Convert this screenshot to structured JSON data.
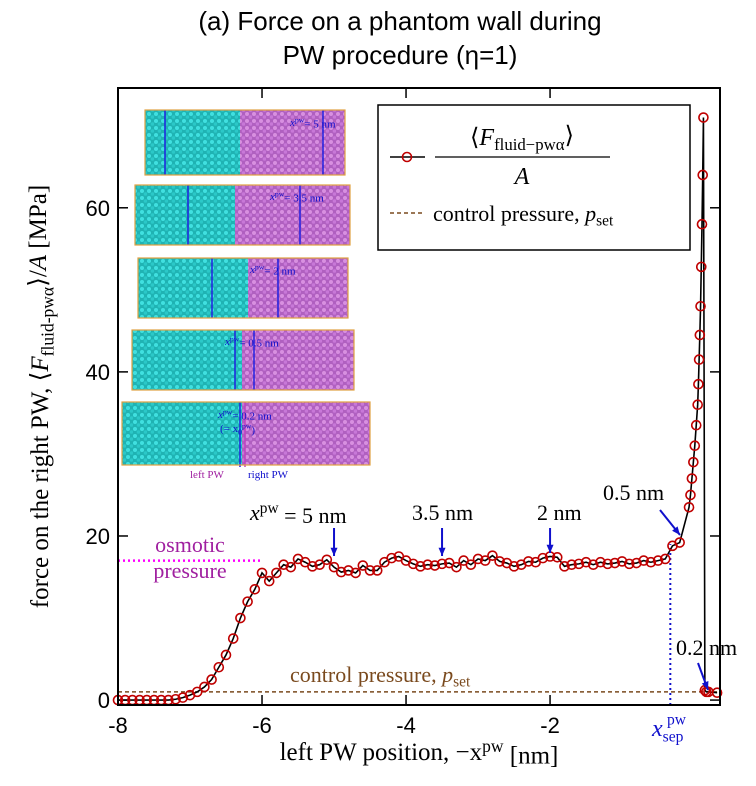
{
  "chart_data": {
    "type": "line",
    "title": [
      "(a) Force on a phantom wall during",
      "PW procedure (η=1)"
    ],
    "x_label": [
      "left PW position, −x",
      "pw",
      " [nm]"
    ],
    "y_label": [
      "force on the right PW, ⟨",
      "F",
      "fluid-pwα",
      "⟩/",
      "A",
      " [MPa]"
    ],
    "xlim": [
      -8,
      0.36
    ],
    "ylim": [
      -0.6,
      74.6
    ],
    "xticks": [
      -8,
      -6,
      -4,
      -2
    ],
    "yticks": [
      0,
      20,
      40,
      60
    ],
    "series": [
      {
        "color": "#c00000",
        "line_color": "#000000",
        "x": [
          -8.0,
          -7.9,
          -7.8,
          -7.7,
          -7.6,
          -7.5,
          -7.4,
          -7.3,
          -7.2,
          -7.1,
          -7.0,
          -6.9,
          -6.8,
          -6.7,
          -6.6,
          -6.5,
          -6.4,
          -6.3,
          -6.2,
          -6.1,
          -6.0,
          -5.9,
          -5.8,
          -5.7,
          -5.6,
          -5.5,
          -5.4,
          -5.3,
          -5.2,
          -5.1,
          -5.0,
          -4.9,
          -4.8,
          -4.7,
          -4.6,
          -4.5,
          -4.4,
          -4.3,
          -4.2,
          -4.1,
          -4.0,
          -3.9,
          -3.8,
          -3.7,
          -3.6,
          -3.5,
          -3.4,
          -3.3,
          -3.2,
          -3.1,
          -3.0,
          -2.9,
          -2.8,
          -2.7,
          -2.6,
          -2.5,
          -2.4,
          -2.3,
          -2.2,
          -2.1,
          -2.0,
          -1.9,
          -1.8,
          -1.7,
          -1.6,
          -1.5,
          -1.4,
          -1.3,
          -1.2,
          -1.1,
          -1.0,
          -0.9,
          -0.8,
          -0.7,
          -0.6,
          -0.5,
          -0.4,
          -0.3,
          -0.2,
          -0.07,
          -0.05,
          -0.03,
          -0.01,
          0.01,
          0.03,
          0.05,
          0.06,
          0.07,
          0.08,
          0.09,
          0.1,
          0.11,
          0.12,
          0.13,
          0.15,
          0.17,
          0.2,
          0.32
        ],
        "values": [
          0,
          0,
          0,
          0,
          0,
          0,
          0,
          0,
          0.1,
          0.3,
          0.6,
          1.0,
          1.6,
          2.5,
          4.0,
          5.5,
          7.5,
          10,
          12,
          13.5,
          15.5,
          14.5,
          15.5,
          16.5,
          16.2,
          17.2,
          16.8,
          16.3,
          16.5,
          17.1,
          16.2,
          15.6,
          15.8,
          15.5,
          16.4,
          15.8,
          15.8,
          16.8,
          17.3,
          17.5,
          17.0,
          16.6,
          16.3,
          16.5,
          16.4,
          16.6,
          16.7,
          16.2,
          17.0,
          16.5,
          17.2,
          17.0,
          17.6,
          16.9,
          16.7,
          16.3,
          16.5,
          16.9,
          16.8,
          17.3,
          17.5,
          17.4,
          16.3,
          16.5,
          16.6,
          16.8,
          16.5,
          16.8,
          16.6,
          16.7,
          16.9,
          16.6,
          16.7,
          17.0,
          16.8,
          17.0,
          17.2,
          18.8,
          19.2,
          23.5,
          25,
          27,
          29,
          31,
          33.5,
          36,
          38.5,
          41.5,
          44.5,
          48,
          52.8,
          58,
          64,
          71,
          1.2,
          1.0,
          1.0,
          0.9
        ]
      }
    ],
    "legend": [
      {
        "numerator": [
          "⟨",
          "F",
          "fluid−pwα",
          "⟩"
        ],
        "denominator": "A"
      },
      {
        "text": "control pressure, ",
        "italic": "p",
        "sub": "set"
      }
    ],
    "control_pressure": 1.0,
    "control_color": "#7a4a1e",
    "osmotic_pressure": 17.0,
    "osmotic_color": "#ff00ff",
    "x_sep": -0.33,
    "x_sep_color": "#1010cc",
    "annotations": {
      "x5": [
        "x",
        "pw",
        " = 5 nm"
      ],
      "x35": "3.5 nm",
      "x2": "2 nm",
      "x05": "0.5 nm",
      "x02": "0.2 nm",
      "osmotic": [
        "osmotic",
        "pressure"
      ],
      "control": [
        "control pressure, ",
        "p",
        "set"
      ],
      "xsep": [
        "x",
        "sep",
        "pw"
      ]
    },
    "inset": {
      "labels": [
        [
          "x",
          "pw",
          "= 5 nm"
        ],
        [
          "x",
          "pw",
          "= 3.5 nm"
        ],
        [
          "x",
          "pw",
          "= 2 nm"
        ],
        [
          "x",
          "pw",
          "= 0.5 nm"
        ],
        [
          "x",
          "pw",
          "= 0.2 nm"
        ]
      ],
      "x0_note": [
        "(= x",
        "0",
        "pw",
        ")"
      ],
      "left_pw": "left PW",
      "right_pw": "right PW"
    }
  }
}
